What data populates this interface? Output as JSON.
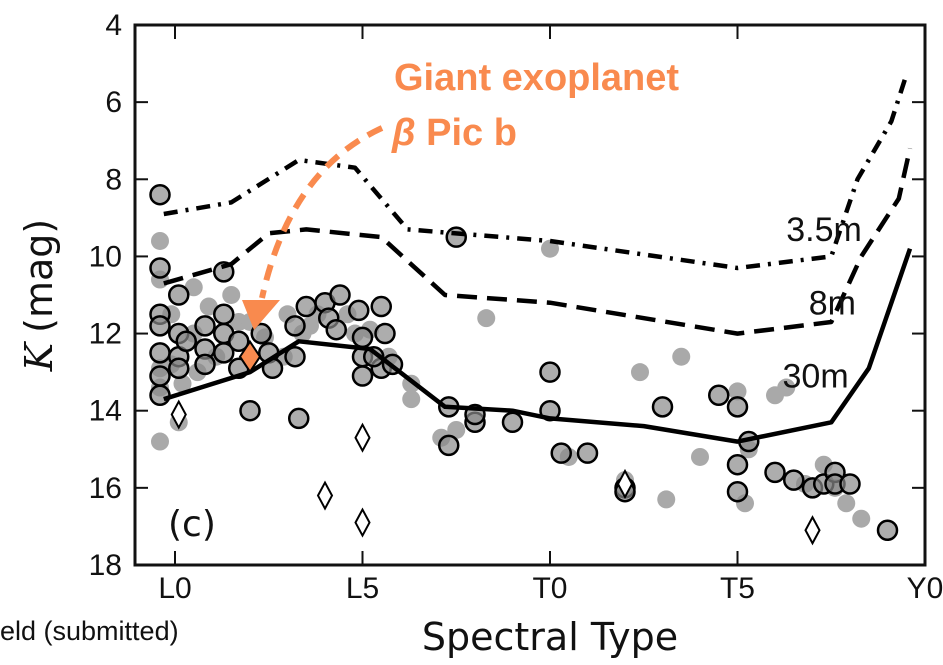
{
  "chart_data": {
    "type": "scatter",
    "xlabel": "Spectral Type",
    "ylabel": "K (mag)",
    "ylabel_italic": "K",
    "ylabel_unit": "(mag)",
    "x_numeric_range": [
      -1,
      30
    ],
    "ylim": [
      18,
      4
    ],
    "y_inverted": true,
    "x_ticks": [
      {
        "value": 0,
        "label": "L0"
      },
      {
        "value": 5,
        "label": "L5"
      },
      {
        "value": 10,
        "label": "T0"
      },
      {
        "value": 15,
        "label": "T5"
      },
      {
        "value": 20,
        "label": "Y0"
      }
    ],
    "y_ticks": [
      4,
      6,
      8,
      10,
      12,
      14,
      16,
      18
    ],
    "panel_label": "(c)",
    "series": [
      {
        "name": "3.5m",
        "style": "dash-dot",
        "color": "#000000",
        "points": [
          [
            -0.3,
            8.9
          ],
          [
            1.5,
            8.6
          ],
          [
            3.3,
            7.5
          ],
          [
            4.8,
            7.7
          ],
          [
            6.2,
            9.3
          ],
          [
            10,
            9.6
          ],
          [
            15,
            10.3
          ],
          [
            17.5,
            10.0
          ],
          [
            18.2,
            8.0
          ],
          [
            19.1,
            6.5
          ],
          [
            19.5,
            5.3
          ]
        ]
      },
      {
        "name": "8m",
        "style": "dashed",
        "color": "#000000",
        "points": [
          [
            -0.3,
            10.7
          ],
          [
            1.5,
            10.2
          ],
          [
            2.5,
            9.4
          ],
          [
            3.5,
            9.3
          ],
          [
            5.5,
            9.5
          ],
          [
            7.2,
            11.0
          ],
          [
            10,
            11.2
          ],
          [
            15,
            12.0
          ],
          [
            17.5,
            11.7
          ],
          [
            18.3,
            10.0
          ],
          [
            19.3,
            8.5
          ],
          [
            19.6,
            7.2
          ]
        ]
      },
      {
        "name": "30m",
        "style": "solid",
        "color": "#000000",
        "points": [
          [
            -0.3,
            13.7
          ],
          [
            2,
            13.0
          ],
          [
            3.3,
            12.2
          ],
          [
            5.2,
            12.4
          ],
          [
            7.2,
            13.9
          ],
          [
            9,
            14.0
          ],
          [
            10,
            14.2
          ],
          [
            12.5,
            14.4
          ],
          [
            15,
            14.8
          ],
          [
            17.5,
            14.3
          ],
          [
            18.5,
            12.9
          ],
          [
            19.6,
            9.8
          ]
        ]
      }
    ],
    "points_dark": [
      [
        -0.4,
        8.4
      ],
      [
        -0.4,
        10.3
      ],
      [
        -0.4,
        11.5
      ],
      [
        -0.4,
        11.8
      ],
      [
        -0.4,
        12.5
      ],
      [
        -0.4,
        13.1
      ],
      [
        -0.4,
        13.6
      ],
      [
        0.1,
        11.0
      ],
      [
        0.1,
        12.0
      ],
      [
        0.1,
        12.6
      ],
      [
        0.1,
        12.9
      ],
      [
        0.3,
        12.2
      ],
      [
        0.8,
        11.8
      ],
      [
        0.8,
        12.4
      ],
      [
        0.8,
        12.8
      ],
      [
        1.3,
        10.4
      ],
      [
        1.3,
        11.5
      ],
      [
        1.3,
        12.0
      ],
      [
        1.3,
        12.5
      ],
      [
        1.7,
        12.2
      ],
      [
        1.7,
        12.9
      ],
      [
        2.3,
        12.0
      ],
      [
        2.5,
        12.5
      ],
      [
        2.6,
        12.9
      ],
      [
        3.2,
        12.6
      ],
      [
        3.2,
        11.8
      ],
      [
        3.5,
        11.3
      ],
      [
        3.3,
        14.2
      ],
      [
        4.0,
        11.2
      ],
      [
        4.1,
        11.6
      ],
      [
        4.4,
        11.0
      ],
      [
        4.3,
        11.9
      ],
      [
        4.9,
        11.4
      ],
      [
        5.0,
        12.1
      ],
      [
        5.0,
        12.6
      ],
      [
        5.0,
        13.1
      ],
      [
        5.5,
        11.3
      ],
      [
        5.6,
        12.0
      ],
      [
        5.5,
        12.9
      ],
      [
        5.8,
        12.8
      ],
      [
        5.3,
        12.6
      ],
      [
        2.0,
        14.0
      ],
      [
        7.3,
        13.9
      ],
      [
        7.3,
        14.9
      ],
      [
        7.5,
        9.5
      ],
      [
        8.0,
        14.3
      ],
      [
        8.0,
        14.1
      ],
      [
        9.0,
        14.3
      ],
      [
        10.0,
        14.0
      ],
      [
        10.0,
        13.0
      ],
      [
        10.3,
        15.1
      ],
      [
        11.0,
        15.1
      ],
      [
        12.0,
        16.0
      ],
      [
        12.0,
        16.1
      ],
      [
        13.0,
        13.9
      ],
      [
        14.5,
        13.6
      ],
      [
        15.0,
        13.9
      ],
      [
        15.0,
        15.4
      ],
      [
        15.0,
        16.1
      ],
      [
        15.3,
        14.8
      ],
      [
        16.0,
        15.6
      ],
      [
        16.5,
        15.8
      ],
      [
        17.0,
        16.0
      ],
      [
        17.3,
        15.9
      ],
      [
        17.6,
        15.6
      ],
      [
        17.6,
        15.9
      ],
      [
        18.0,
        15.9
      ],
      [
        19.0,
        17.1
      ]
    ],
    "points_light": [
      [
        -0.4,
        9.6
      ],
      [
        -0.4,
        10.6
      ],
      [
        -0.4,
        12.9
      ],
      [
        -0.4,
        13.4
      ],
      [
        -0.4,
        14.8
      ],
      [
        -0.1,
        11.5
      ],
      [
        -0.1,
        12.8
      ],
      [
        0.1,
        14.3
      ],
      [
        0.2,
        13.3
      ],
      [
        0.5,
        10.8
      ],
      [
        0.5,
        12.0
      ],
      [
        0.6,
        13.0
      ],
      [
        0.9,
        11.3
      ],
      [
        1.1,
        12.6
      ],
      [
        1.5,
        11.0
      ],
      [
        1.7,
        11.7
      ],
      [
        2.0,
        11.7
      ],
      [
        2.4,
        12.1
      ],
      [
        2.9,
        12.6
      ],
      [
        3.0,
        11.5
      ],
      [
        3.4,
        12.0
      ],
      [
        3.6,
        11.8
      ],
      [
        3.8,
        11.5
      ],
      [
        4.6,
        11.5
      ],
      [
        4.8,
        12.0
      ],
      [
        5.2,
        11.9
      ],
      [
        5.7,
        12.6
      ],
      [
        6.3,
        13.3
      ],
      [
        6.3,
        13.7
      ],
      [
        7.1,
        14.7
      ],
      [
        7.5,
        14.5
      ],
      [
        8.3,
        11.6
      ],
      [
        10.0,
        9.8
      ],
      [
        10.5,
        15.2
      ],
      [
        12.0,
        15.8
      ],
      [
        12.4,
        13.0
      ],
      [
        13.1,
        16.3
      ],
      [
        13.5,
        12.6
      ],
      [
        14.0,
        15.2
      ],
      [
        15.0,
        13.5
      ],
      [
        15.3,
        15.0
      ],
      [
        15.2,
        16.4
      ],
      [
        16.0,
        13.6
      ],
      [
        16.3,
        13.4
      ],
      [
        16.8,
        15.9
      ],
      [
        17.3,
        15.4
      ],
      [
        17.6,
        16.0
      ],
      [
        17.9,
        16.4
      ],
      [
        18.3,
        16.8
      ]
    ],
    "diamonds": [
      [
        0.1,
        14.1
      ],
      [
        4.0,
        16.2
      ],
      [
        5.0,
        14.7
      ],
      [
        5.0,
        16.9
      ],
      [
        12.0,
        15.9
      ],
      [
        17.0,
        17.1
      ]
    ],
    "highlight": {
      "x": 2.0,
      "y": 12.6,
      "color": "#F98A4E"
    },
    "annotation": {
      "line1": "Giant exoplanet",
      "line2_symbol": "β",
      "line2_text": " Pic b",
      "color": "#F98A4E"
    },
    "curve_labels": [
      {
        "text": "3.5m",
        "x": 16.3,
        "y": 9.6
      },
      {
        "text": "8m",
        "x": 16.9,
        "y": 11.5
      },
      {
        "text": "30m",
        "x": 16.2,
        "y": 13.4
      }
    ]
  },
  "caption_fragment": "eld (submitted)"
}
